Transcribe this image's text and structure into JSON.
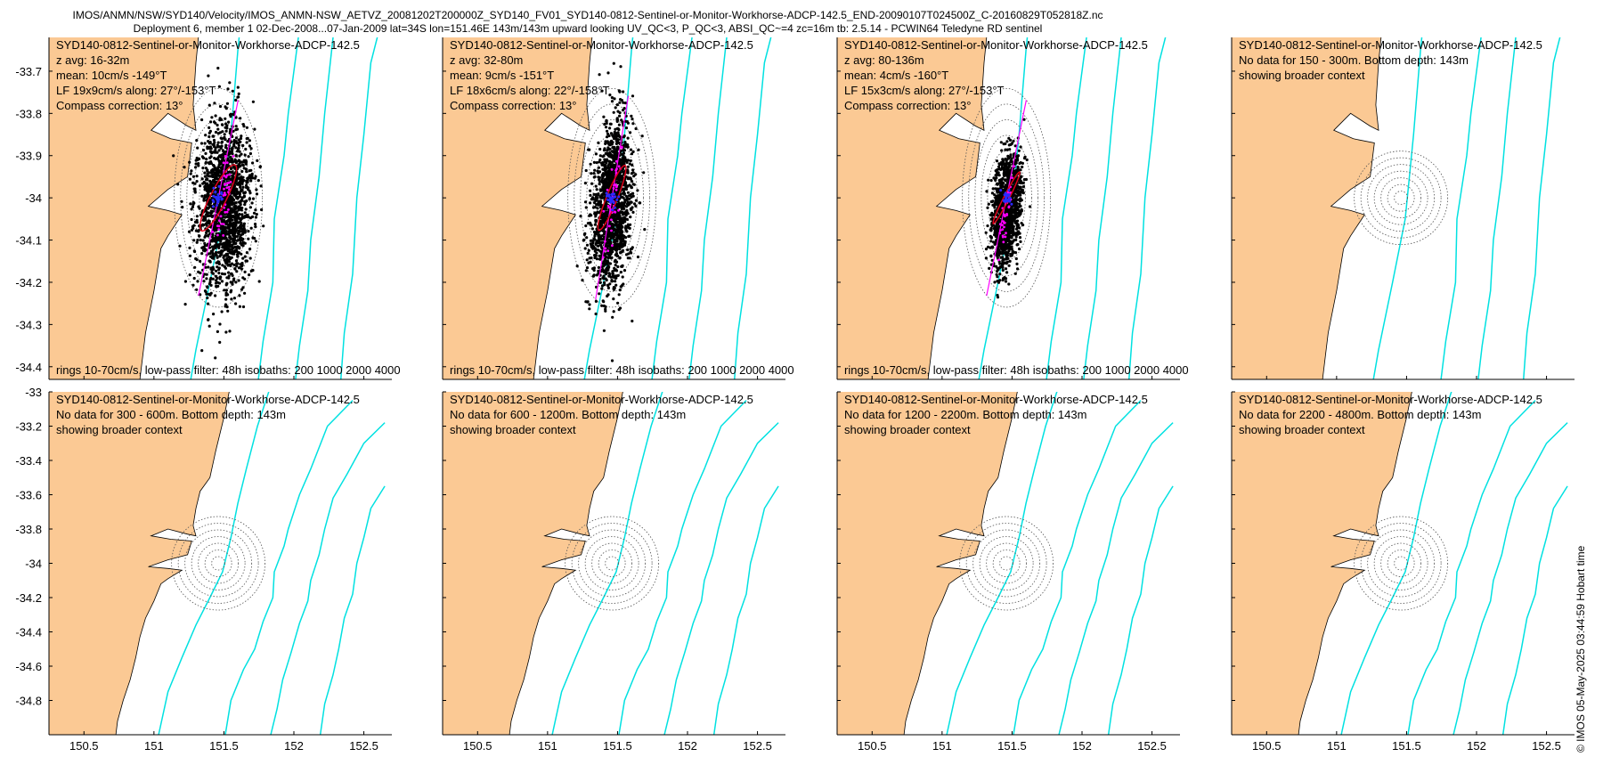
{
  "header": {
    "line1": "IMOS/ANMN/NSW/SYD140/Velocity/IMOS_ANMN-NSW_AETVZ_20081202T200000Z_SYD140_FV01_SYD140-0812-Sentinel-or-Monitor-Workhorse-ADCP-142.5_END-20090107T024500Z_C-20160829T052818Z.nc",
    "line2": "Deployment 6, member 1 02-Dec-2008...07-Jan-2009 lat=34S lon=151.46E 143m/143m upward looking UV_QC<3, P_QC<3, ABSI_QC~=4 zc=16m tb: 2.5.14 - PCWIN64 Teledyne RD sentinel"
  },
  "copyright": "© IMOS 05-May-2025 03:44:59 Hobart time",
  "colors": {
    "land": "#fbc994",
    "isobath": "#00e1e1",
    "scatter": "#000000",
    "axis_line": "#ff00ff",
    "ellipse": "#e0001a",
    "mean": "#2a2aff"
  },
  "chart_data": {
    "type": "scatter",
    "description_axes": "longitude (x) vs latitude (y), 2 rows x 4 panels",
    "rows": [
      {
        "ylim": [
          -34.43,
          -33.62
        ],
        "yticks": [
          "-33.7",
          "-33.8",
          "-33.9",
          "-34",
          "-34.1",
          "-34.2",
          "-34.3",
          "-34.4"
        ],
        "ytick_values": [
          -33.7,
          -33.8,
          -33.9,
          -34.0,
          -34.1,
          -34.2,
          -34.3,
          -34.4
        ]
      },
      {
        "ylim": [
          -35.0,
          -33.0
        ],
        "yticks": [
          "-33",
          "-33.2",
          "-33.4",
          "-33.6",
          "-33.8",
          "-34",
          "-34.2",
          "-34.4",
          "-34.6",
          "-34.8"
        ],
        "ytick_values": [
          -33.0,
          -33.2,
          -33.4,
          -33.6,
          -33.8,
          -34.0,
          -34.2,
          -34.4,
          -34.6,
          -34.8
        ]
      }
    ],
    "xlim": [
      150.25,
      152.7
    ],
    "xticks": [
      "150.5",
      "151",
      "151.5",
      "152",
      "152.5"
    ],
    "xtick_values": [
      150.5,
      151.0,
      151.5,
      152.0,
      152.5
    ],
    "mooring": {
      "lon": 151.46,
      "lat": -34.0
    },
    "panels": [
      {
        "row": 0,
        "lines": [
          "SYD140-0812-Sentinel-or-Monitor-Workhorse-ADCP-142.5",
          "z avg: 16-32m",
          "mean: 10cm/s -149°T",
          "LF 19x9cm/s along: 27°/-153°T",
          "Compass correction: 13°"
        ],
        "footer": "rings 10-70cm/s, low-pass filter: 48h isobaths: 200 1000 2000 4000",
        "has_data": true,
        "cloud": {
          "dx": 0.04,
          "dy": -0.02,
          "sx": 0.17,
          "sy": 0.1,
          "rot": 27,
          "n": 1700
        },
        "ellipse": {
          "major": 19,
          "minor": 9,
          "angle": 27
        },
        "mean": {
          "speed": 10,
          "dir": -149
        }
      },
      {
        "row": 0,
        "lines": [
          "SYD140-0812-Sentinel-or-Monitor-Workhorse-ADCP-142.5",
          "z avg: 32-80m",
          "mean: 9cm/s -151°T",
          "LF 18x6cm/s along: 22°/-158°T",
          "Compass correction: 13°"
        ],
        "footer": "rings 10-70cm/s, low-pass filter: 48h isobaths: 200 1000 2000 4000",
        "has_data": true,
        "cloud": {
          "dx": 0.0,
          "dy": -0.02,
          "sx": 0.12,
          "sy": 0.1,
          "rot": 22,
          "n": 1600
        },
        "ellipse": {
          "major": 18,
          "minor": 6,
          "angle": 22
        },
        "mean": {
          "speed": 9,
          "dir": -151
        }
      },
      {
        "row": 0,
        "lines": [
          "SYD140-0812-Sentinel-or-Monitor-Workhorse-ADCP-142.5",
          "z avg: 80-136m",
          "mean: 4cm/s -160°T",
          "LF 15x3cm/s along: 27°/-153°T",
          "Compass correction: 13°"
        ],
        "footer": "rings 10-70cm/s, low-pass filter: 48h isobaths: 200 1000 2000 4000",
        "has_data": true,
        "cloud": {
          "dx": 0.0,
          "dy": -0.03,
          "sx": 0.08,
          "sy": 0.07,
          "rot": 27,
          "n": 1400
        },
        "ellipse": {
          "major": 15,
          "minor": 3,
          "angle": 27
        },
        "mean": {
          "speed": 4,
          "dir": -160
        }
      },
      {
        "row": 0,
        "lines": [
          "SYD140-0812-Sentinel-or-Monitor-Workhorse-ADCP-142.5",
          "No data for 150 - 300m. Bottom depth: 143m",
          "showing broader context"
        ],
        "footer": "",
        "has_data": false
      },
      {
        "row": 1,
        "lines": [
          "SYD140-0812-Sentinel-or-Monitor-Workhorse-ADCP-142.5",
          "No data for 300 - 600m. Bottom depth: 143m",
          "showing broader context"
        ],
        "footer": "",
        "has_data": false
      },
      {
        "row": 1,
        "lines": [
          "SYD140-0812-Sentinel-or-Monitor-Workhorse-ADCP-142.5",
          "No data for 600 - 1200m. Bottom depth: 143m",
          "showing broader context"
        ],
        "footer": "",
        "has_data": false
      },
      {
        "row": 1,
        "lines": [
          "SYD140-0812-Sentinel-or-Monitor-Workhorse-ADCP-142.5",
          "No data for 1200 - 2200m. Bottom depth: 143m",
          "showing broader context"
        ],
        "footer": "",
        "has_data": false
      },
      {
        "row": 1,
        "lines": [
          "SYD140-0812-Sentinel-or-Monitor-Workhorse-ADCP-142.5",
          "No data for 2200 - 4800m. Bottom depth: 143m",
          "showing broader context"
        ],
        "footer": "",
        "has_data": false
      }
    ]
  }
}
